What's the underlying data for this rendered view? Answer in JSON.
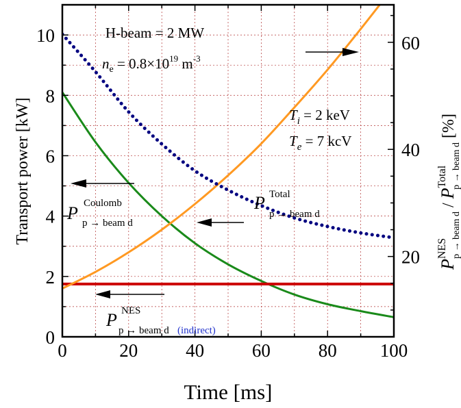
{
  "chart_data": {
    "type": "line",
    "xlabel": "Time [ms]",
    "ylabel_left": "Transport power [kW]",
    "ylabel_right": {
      "main": "P",
      "sup1": "NES",
      "sub1": "p → beam d",
      "sep": " / ",
      "main2": "P",
      "sup2": "Total",
      "sub2": "p → beam d",
      "unit": " [%]"
    },
    "xlim": [
      0,
      100
    ],
    "ylim_left": [
      0,
      11
    ],
    "ylim_right": [
      5,
      67
    ],
    "x_ticks": [
      "0",
      "20",
      "40",
      "60",
      "80",
      "100"
    ],
    "y_ticks_left": [
      "0",
      "2",
      "4",
      "6",
      "8",
      "10"
    ],
    "y_ticks_right": [
      "20",
      "40",
      "60"
    ],
    "grid": true,
    "series": [
      {
        "id": "coulomb",
        "axis": "left",
        "color": "#1a8a1a",
        "style": "solid",
        "x": [
          0,
          10,
          20,
          30,
          40,
          50,
          60,
          70,
          80,
          90,
          100
        ],
        "y": [
          8.1,
          6.45,
          5.1,
          4.0,
          3.1,
          2.4,
          1.85,
          1.4,
          1.08,
          0.85,
          0.65
        ]
      },
      {
        "id": "nes",
        "axis": "left",
        "color": "#cc0000",
        "style": "solid",
        "x": [
          0,
          100
        ],
        "y": [
          1.75,
          1.75
        ]
      },
      {
        "id": "total",
        "axis": "left",
        "color": "#ff9922",
        "style": "solid",
        "x": [
          0,
          10,
          20,
          30,
          40,
          50,
          60,
          70,
          80,
          90,
          100
        ],
        "y": [
          1.6,
          2.15,
          2.8,
          3.55,
          4.4,
          5.35,
          6.4,
          7.6,
          8.85,
          10.2,
          11.6
        ]
      },
      {
        "id": "ratio",
        "axis": "right",
        "color": "#000080",
        "style": "dotted",
        "x": [
          0,
          10,
          20,
          30,
          40,
          50,
          60,
          70,
          80,
          90,
          100
        ],
        "y": [
          61.5,
          54.5,
          47.0,
          41.0,
          36.0,
          32.4,
          29.5,
          27.2,
          25.6,
          24.4,
          23.5
        ]
      }
    ],
    "annotations": {
      "hbeam": "H-beam = 2 MW",
      "ne_main": "n",
      "ne_sub": "e",
      "ne_rest": " = 0.8×10",
      "ne_exp": "19",
      "ne_unit": " m",
      "ne_unit_exp": "-3",
      "ti_main": "T",
      "ti_sub": "i",
      "ti_rest": " = 2 keV",
      "te_main": "T",
      "te_sub": "e",
      "te_rest": " = 7 kcV",
      "coulomb_main": "P",
      "coulomb_sup": "Coulomb",
      "coulomb_sub": "p → beam d",
      "total_main": "P",
      "total_sup": "Total",
      "total_sub": "p → beam d",
      "nes_main": "P",
      "nes_sup": "NES",
      "nes_sub": "p → beam d",
      "nes_indirect": "(indirect)"
    }
  }
}
